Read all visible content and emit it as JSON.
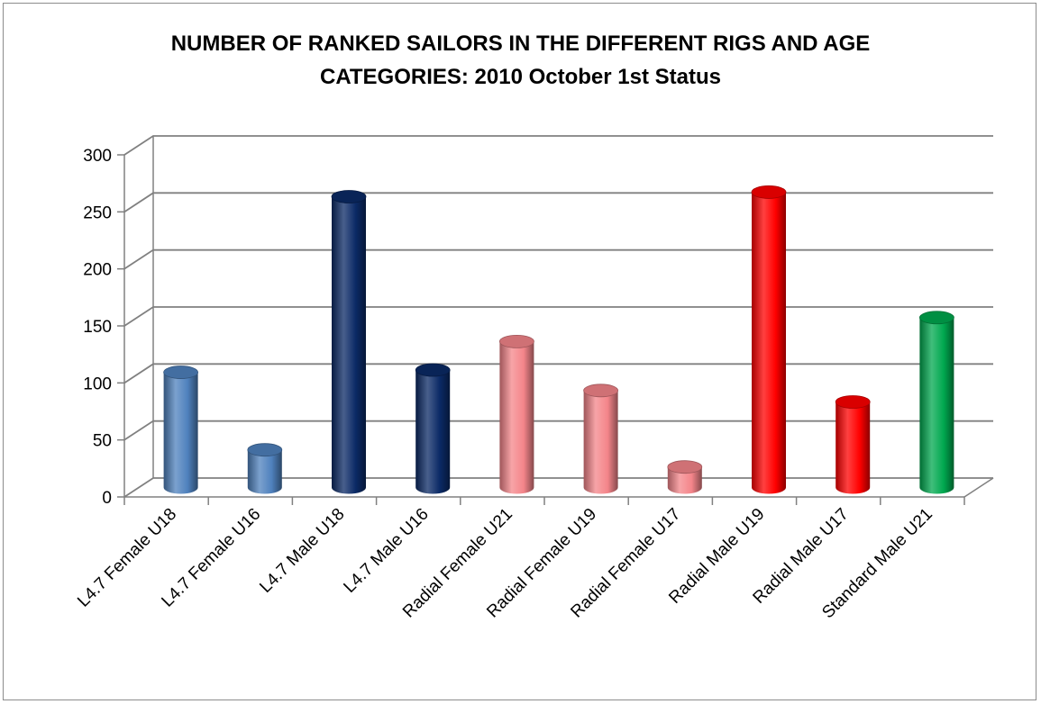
{
  "chart_data": {
    "type": "bar",
    "title_lines": [
      "NUMBER OF RANKED SAILORS IN THE DIFFERENT RIGS AND AGE",
      "CATEGORIES: 2010 October 1st Status"
    ],
    "categories": [
      "L4.7 Female U18",
      "L4.7 Female U16",
      "L4.7 Male U18",
      "L4.7 Male U16",
      "Radial Female U21",
      "Radial Female U19",
      "Radial Female U17",
      "Radial Male U19",
      "Radial Male U17",
      "Standard Male U21"
    ],
    "values": [
      101,
      33,
      255,
      103,
      128,
      85,
      18,
      259,
      75,
      149
    ],
    "colors": [
      "#4f81bd",
      "#4f81bd",
      "#0b2a66",
      "#0b2a66",
      "#f4858a",
      "#f4858a",
      "#f4858a",
      "#ff0000",
      "#ff0000",
      "#00a84f"
    ],
    "yticks": [
      0,
      50,
      100,
      150,
      200,
      250,
      300
    ],
    "ylim": [
      0,
      300
    ],
    "grid": true,
    "legend": "none",
    "style": "3d-cylinder"
  }
}
